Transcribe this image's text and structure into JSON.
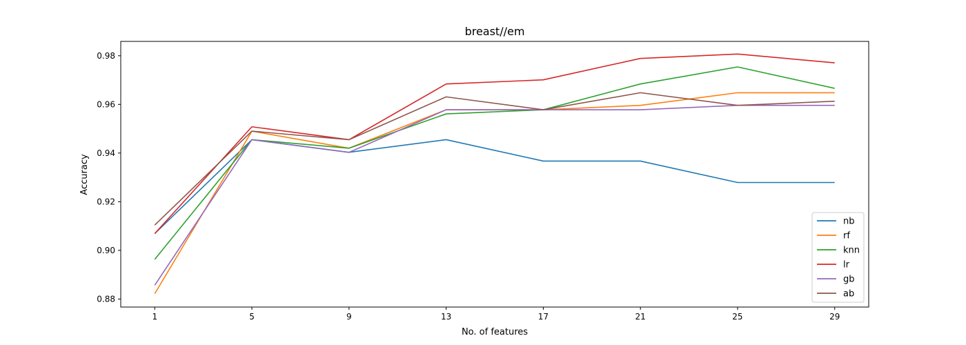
{
  "chart_data": {
    "type": "line",
    "title": "breast//em",
    "xlabel": "No. of features",
    "ylabel": "Accuracy",
    "x": [
      1,
      5,
      9,
      13,
      17,
      21,
      25,
      29
    ],
    "xticks": [
      "1",
      "5",
      "9",
      "13",
      "17",
      "21",
      "25",
      "29"
    ],
    "yticks": [
      "0.88",
      "0.90",
      "0.92",
      "0.94",
      "0.96",
      "0.98"
    ],
    "ytick_values": [
      0.88,
      0.9,
      0.92,
      0.94,
      0.96,
      0.98
    ],
    "xlim": [
      -0.4,
      30.4
    ],
    "ylim": [
      0.8767,
      0.9859
    ],
    "grid": false,
    "legend_position": "lower right",
    "series": [
      {
        "name": "nb",
        "color": "#1f77b4",
        "values": [
          0.9069,
          0.9455,
          0.9403,
          0.9455,
          0.9367,
          0.9367,
          0.9279,
          0.9279
        ]
      },
      {
        "name": "rf",
        "color": "#ff7f0e",
        "values": [
          0.8822,
          0.949,
          0.942,
          0.9578,
          0.9578,
          0.9596,
          0.9648,
          0.9648
        ]
      },
      {
        "name": "knn",
        "color": "#2ca02c",
        "values": [
          0.8963,
          0.9455,
          0.942,
          0.9561,
          0.9578,
          0.9684,
          0.9754,
          0.9666
        ]
      },
      {
        "name": "lr",
        "color": "#d62728",
        "values": [
          0.9069,
          0.9508,
          0.9455,
          0.9684,
          0.9701,
          0.9789,
          0.9807,
          0.9771
        ]
      },
      {
        "name": "gb",
        "color": "#9467bd",
        "values": [
          0.8857,
          0.9455,
          0.9403,
          0.9578,
          0.9578,
          0.9578,
          0.9596,
          0.9596
        ]
      },
      {
        "name": "ab",
        "color": "#8c564b",
        "values": [
          0.9104,
          0.949,
          0.9455,
          0.9631,
          0.9578,
          0.9648,
          0.9596,
          0.9613
        ]
      }
    ]
  }
}
